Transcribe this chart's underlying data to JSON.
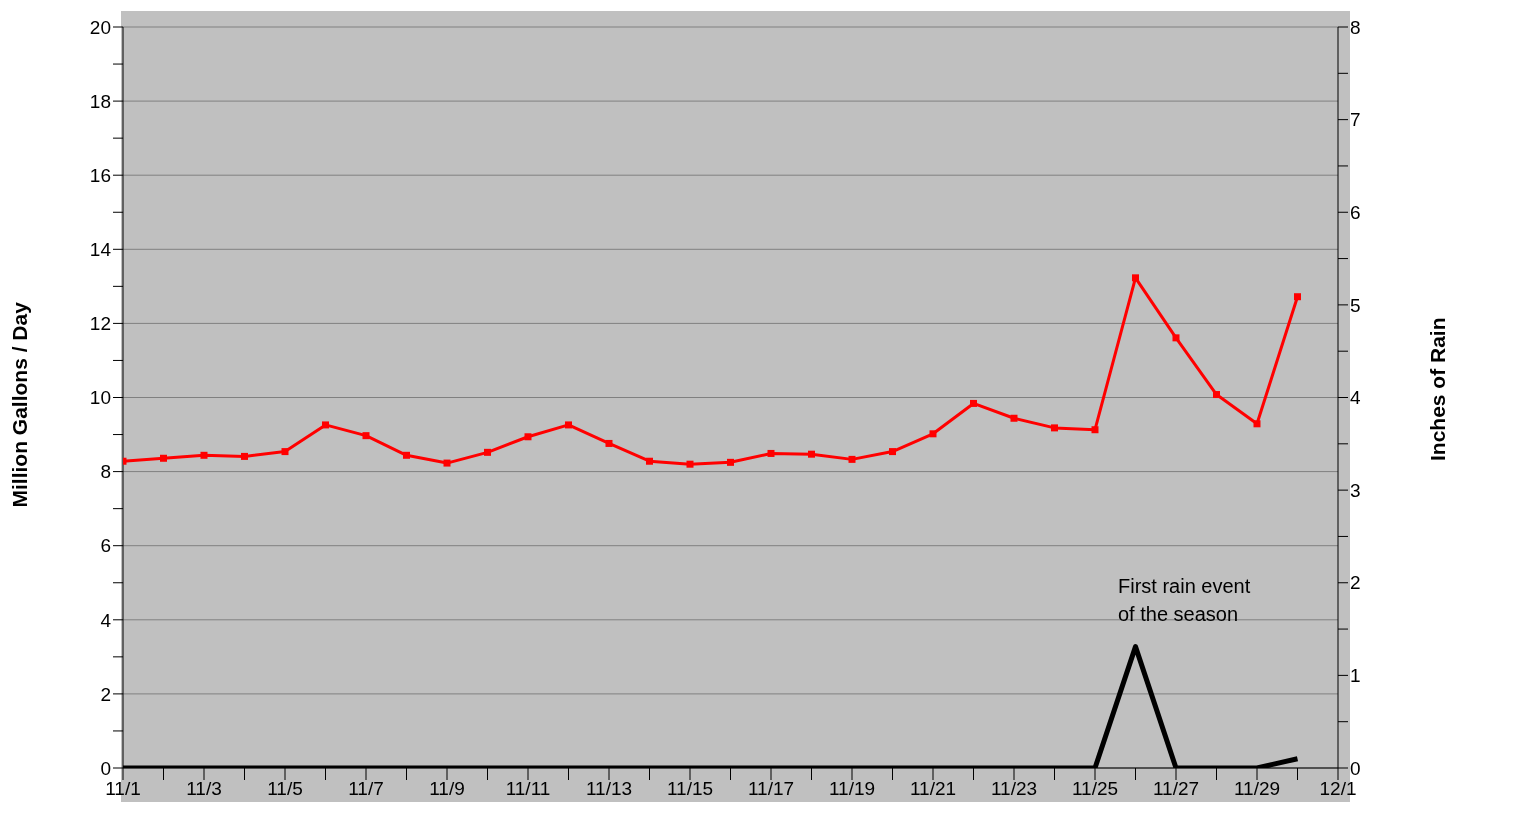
{
  "chart_data": {
    "type": "line",
    "x": [
      "--11-01",
      "--11-02",
      "--11-03",
      "--11-04",
      "--11-05",
      "--11-06",
      "--11-07",
      "--11-08",
      "--11-09",
      "--11-10",
      "--11-11",
      "--11-12",
      "--11-13",
      "--11-14",
      "--11-15",
      "--11-16",
      "--11-17",
      "--11-18",
      "--11-19",
      "--11-20",
      "--11-21",
      "--11-22",
      "--11-23",
      "--11-24",
      "--11-25",
      "--11-26",
      "--11-27",
      "--11-28",
      "--11-29",
      "--11-30"
    ],
    "series": [
      {
        "color": "#ff0000",
        "marker": "square",
        "values": [
          8.28,
          8.36,
          8.44,
          8.41,
          8.54,
          9.26,
          8.97,
          8.44,
          8.23,
          8.52,
          8.94,
          9.26,
          8.76,
          8.28,
          8.2,
          8.25,
          8.49,
          8.47,
          8.33,
          8.54,
          9.02,
          9.84,
          9.44,
          9.18,
          9.13,
          13.23,
          11.61,
          10.08,
          9.29,
          12.72
        ]
      },
      {
        "color": "#000000",
        "marker": "none",
        "axis": "y2",
        "values": [
          0,
          0,
          0,
          0,
          0,
          0,
          0,
          0,
          0,
          0,
          0,
          0,
          0,
          0,
          0,
          0,
          0,
          0,
          0,
          0,
          0,
          0,
          0,
          0,
          0,
          1.31,
          0,
          0,
          0,
          0.1
        ]
      }
    ],
    "ylabel": "Million Gallons / Day",
    "y2label": "Inches of Rain",
    "annotations": [
      "First rain event\nof the season"
    ],
    "xlim": [
      "--11-01",
      "--12-01"
    ],
    "xticks": [
      {
        "value": "--11-01",
        "label": "11/1"
      },
      {
        "value": "--11-02",
        "label": null
      },
      {
        "value": "--11-03",
        "label": "11/3"
      },
      {
        "value": "--11-04",
        "label": null
      },
      {
        "value": "--11-05",
        "label": "11/5"
      },
      {
        "value": "--11-06",
        "label": null
      },
      {
        "value": "--11-07",
        "label": "11/7"
      },
      {
        "value": "--11-08",
        "label": null
      },
      {
        "value": "--11-09",
        "label": "11/9"
      },
      {
        "value": "--11-10",
        "label": null
      },
      {
        "value": "--11-11",
        "label": "11/11"
      },
      {
        "value": "--11-12",
        "label": null
      },
      {
        "value": "--11-13",
        "label": "11/13"
      },
      {
        "value": "--11-14",
        "label": null
      },
      {
        "value": "--11-15",
        "label": "11/15"
      },
      {
        "value": "--11-16",
        "label": null
      },
      {
        "value": "--11-17",
        "label": "11/17"
      },
      {
        "value": "--11-18",
        "label": null
      },
      {
        "value": "--11-19",
        "label": "11/19"
      },
      {
        "value": "--11-20",
        "label": null
      },
      {
        "value": "--11-21",
        "label": "11/21"
      },
      {
        "value": "--11-22",
        "label": null
      },
      {
        "value": "--11-23",
        "label": "11/23"
      },
      {
        "value": "--11-24",
        "label": null
      },
      {
        "value": "--11-25",
        "label": "11/25"
      },
      {
        "value": "--11-26",
        "label": null
      },
      {
        "value": "--11-27",
        "label": "11/27"
      },
      {
        "value": "--11-28",
        "label": null
      },
      {
        "value": "--11-29",
        "label": "11/29"
      },
      {
        "value": "--11-30",
        "label": null
      },
      {
        "value": "--12-01",
        "label": "12/1"
      }
    ],
    "ylim": [
      0,
      20
    ],
    "yticks": [
      0,
      {
        "value": 1,
        "label": null
      },
      2,
      {
        "value": 3,
        "label": null
      },
      4,
      {
        "value": 5,
        "label": null
      },
      6,
      {
        "value": 7,
        "label": null
      },
      8,
      {
        "value": 9,
        "label": null
      },
      10,
      {
        "value": 11,
        "label": null
      },
      12,
      {
        "value": 13,
        "label": null
      },
      14,
      {
        "value": 15,
        "label": null
      },
      16,
      {
        "value": 17,
        "label": null
      },
      18,
      {
        "value": 19,
        "label": null
      },
      20
    ],
    "y2lim": [
      0,
      8
    ],
    "y2ticks": [
      0,
      {
        "value": 0.5,
        "label": null
      },
      1,
      {
        "value": 1.5,
        "label": null
      },
      2,
      {
        "value": 2.5,
        "label": null
      },
      3,
      {
        "value": 3.5,
        "label": null
      },
      4,
      {
        "value": 4.5,
        "label": null
      },
      5,
      {
        "value": 5.5,
        "label": null
      },
      6,
      {
        "value": 6.5,
        "label": null
      },
      7,
      {
        "value": 7.5,
        "label": null
      },
      8
    ],
    "grid": "y",
    "legend": false
  }
}
